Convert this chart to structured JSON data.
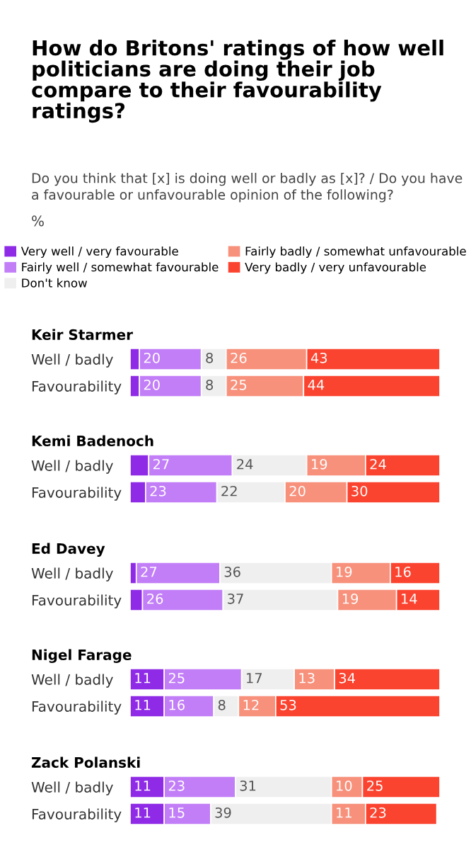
{
  "chart_data": [
    {
      "type": "other",
      "title": "How do Britons' ratings of how well politicians are doing their job compare to their favourability ratings?",
      "subtitle": "Do you think that [x] is doing well or badly as [x]? / Do you have a favourable or unfavourable opinion of the following?",
      "annotations": [
        "%"
      ]
    },
    {
      "type": "bar",
      "orientation": "horizontal",
      "stacked": true,
      "title": "Keir Starmer",
      "categories": [
        "Well / badly",
        "Favourability"
      ],
      "legend": "top",
      "series": [
        {
          "name": "Very well / very favourable",
          "color": "#8f2be6",
          "values": [
            3,
            3
          ],
          "value_labels": [
            null,
            null
          ]
        },
        {
          "name": "Fairly well / somewhat favourable",
          "color": "#c27ef7",
          "values": [
            20,
            20
          ],
          "value_labels": [
            "20",
            "20"
          ]
        },
        {
          "name": "Don't know",
          "color": "#efefef",
          "values": [
            8,
            8
          ],
          "value_labels": [
            "8",
            "8"
          ]
        },
        {
          "name": "Fairly badly / somewhat unfavourable",
          "color": "#f7917c",
          "values": [
            26,
            25
          ],
          "value_labels": [
            "26",
            "25"
          ]
        },
        {
          "name": "Very badly / very unfavourable",
          "color": "#fa4430",
          "values": [
            43,
            44
          ],
          "value_labels": [
            "43",
            "44"
          ]
        }
      ]
    },
    {
      "type": "bar",
      "orientation": "horizontal",
      "stacked": true,
      "title": "Kemi Badenoch",
      "categories": [
        "Well / badly",
        "Favourability"
      ],
      "series": [
        {
          "color": "#8f2be6",
          "values": [
            6,
            5
          ],
          "value_labels": [
            null,
            null
          ]
        },
        {
          "color": "#c27ef7",
          "values": [
            27,
            23
          ],
          "value_labels": [
            "27",
            "23"
          ]
        },
        {
          "color": "#efefef",
          "values": [
            24,
            22
          ],
          "value_labels": [
            "24",
            "22"
          ]
        },
        {
          "color": "#f7917c",
          "values": [
            19,
            20
          ],
          "value_labels": [
            "19",
            "20"
          ]
        },
        {
          "color": "#fa4430",
          "values": [
            24,
            30
          ],
          "value_labels": [
            "24",
            "30"
          ]
        }
      ]
    },
    {
      "type": "bar",
      "orientation": "horizontal",
      "stacked": true,
      "title": "Ed Davey",
      "categories": [
        "Well / badly",
        "Favourability"
      ],
      "series": [
        {
          "color": "#8f2be6",
          "values": [
            2,
            4
          ],
          "value_labels": [
            null,
            null
          ]
        },
        {
          "color": "#c27ef7",
          "values": [
            27,
            26
          ],
          "value_labels": [
            "27",
            "26"
          ]
        },
        {
          "color": "#efefef",
          "values": [
            36,
            37
          ],
          "value_labels": [
            "36",
            "37"
          ]
        },
        {
          "color": "#f7917c",
          "values": [
            19,
            19
          ],
          "value_labels": [
            "19",
            "19"
          ]
        },
        {
          "color": "#fa4430",
          "values": [
            16,
            14
          ],
          "value_labels": [
            "16",
            "14"
          ]
        }
      ]
    },
    {
      "type": "bar",
      "orientation": "horizontal",
      "stacked": true,
      "title": "Nigel Farage",
      "categories": [
        "Well / badly",
        "Favourability"
      ],
      "data_labels": true,
      "series": [
        {
          "color": "#8f2be6",
          "values": [
            11,
            11
          ]
        },
        {
          "color": "#c27ef7",
          "values": [
            25,
            16
          ]
        },
        {
          "color": "#efefef",
          "values": [
            17,
            8
          ]
        },
        {
          "color": "#f7917c",
          "values": [
            13,
            12
          ]
        },
        {
          "color": "#fa4430",
          "values": [
            34,
            53
          ]
        }
      ]
    },
    {
      "type": "bar",
      "orientation": "horizontal",
      "stacked": true,
      "title": "Zack Polanski",
      "categories": [
        "Well / badly",
        "Favourability"
      ],
      "data_labels": true,
      "series": [
        {
          "color": "#8f2be6",
          "values": [
            11,
            11
          ]
        },
        {
          "color": "#c27ef7",
          "values": [
            23,
            15
          ]
        },
        {
          "color": "#efefef",
          "values": [
            31,
            39
          ]
        },
        {
          "color": "#f7917c",
          "values": [
            10,
            11
          ]
        },
        {
          "color": "#fa4430",
          "values": [
            25,
            23
          ]
        }
      ]
    }
  ]
}
